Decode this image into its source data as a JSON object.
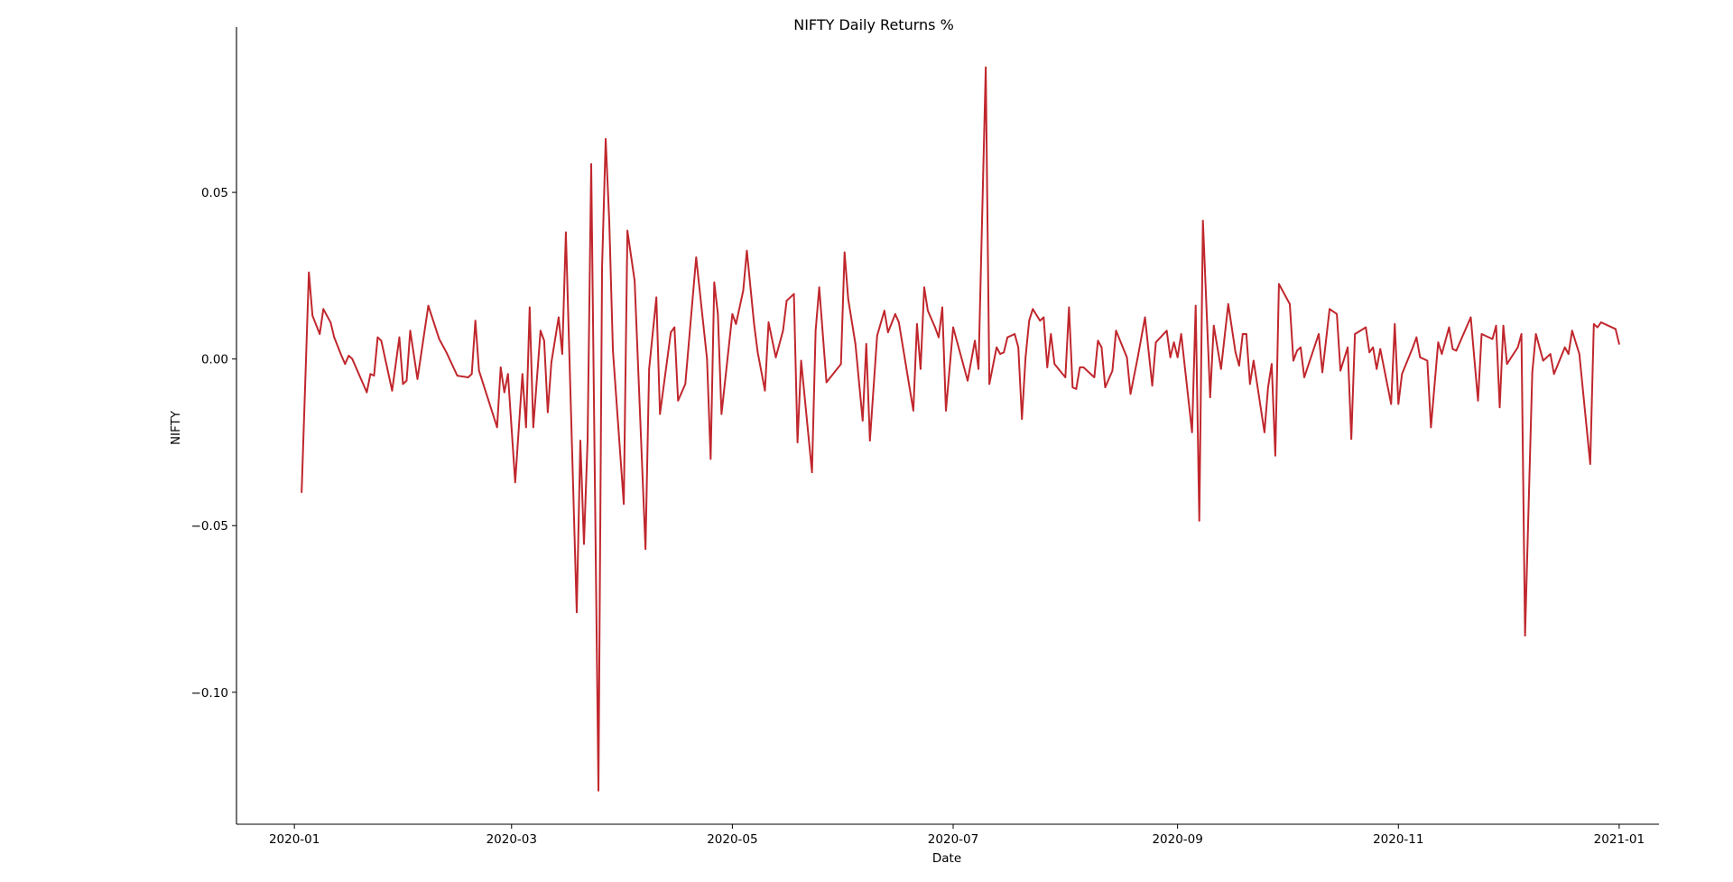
{
  "chart_data": {
    "type": "line",
    "title": "NIFTY Daily Returns %",
    "xlabel": "Date",
    "ylabel": "NIFTY",
    "grid": false,
    "legend": "none",
    "xlim": [
      "2019-12-16",
      "2021-01-12"
    ],
    "ylim": [
      -0.1396,
      0.0996
    ],
    "x_ticks": [
      "2020-01-01",
      "2020-03-01",
      "2020-05-01",
      "2020-07-01",
      "2020-09-01",
      "2020-11-01",
      "2021-01-01"
    ],
    "x_tick_labels": [
      "2020-01",
      "2020-03",
      "2020-05",
      "2020-07",
      "2020-09",
      "2020-11",
      "2021-01"
    ],
    "y_ticks": [
      -0.1,
      -0.05,
      0.0,
      0.05
    ],
    "y_tick_labels": [
      "−0.10",
      "−0.05",
      "0.00",
      "0.05"
    ],
    "series": [
      {
        "color": "#c0272d",
        "points": [
          [
            "2020-01-03",
            -0.04
          ],
          [
            "2020-01-05",
            0.026
          ],
          [
            "2020-01-06",
            0.013
          ],
          [
            "2020-01-08",
            0.0075
          ],
          [
            "2020-01-09",
            0.015
          ],
          [
            "2020-01-11",
            0.011
          ],
          [
            "2020-01-12",
            0.0065
          ],
          [
            "2020-01-14",
            0.001
          ],
          [
            "2020-01-15",
            -0.0015
          ],
          [
            "2020-01-16",
            0.001
          ],
          [
            "2020-01-17",
            0.0
          ],
          [
            "2020-01-21",
            -0.01
          ],
          [
            "2020-01-22",
            -0.0045
          ],
          [
            "2020-01-23",
            -0.005
          ],
          [
            "2020-01-24",
            0.0065
          ],
          [
            "2020-01-25",
            0.0055
          ],
          [
            "2020-01-28",
            -0.0095
          ],
          [
            "2020-01-30",
            0.0065
          ],
          [
            "2020-01-31",
            -0.0075
          ],
          [
            "2020-02-01",
            -0.0065
          ],
          [
            "2020-02-02",
            0.0085
          ],
          [
            "2020-02-04",
            -0.006
          ],
          [
            "2020-02-07",
            0.016
          ],
          [
            "2020-02-10",
            0.006
          ],
          [
            "2020-02-12",
            0.002
          ],
          [
            "2020-02-15",
            -0.005
          ],
          [
            "2020-02-18",
            -0.0055
          ],
          [
            "2020-02-19",
            -0.0045
          ],
          [
            "2020-02-20",
            0.0115
          ],
          [
            "2020-02-21",
            -0.0035
          ],
          [
            "2020-02-26",
            -0.0205
          ],
          [
            "2020-02-27",
            -0.0025
          ],
          [
            "2020-02-28",
            -0.01
          ],
          [
            "2020-02-29",
            -0.0045
          ],
          [
            "2020-03-02",
            -0.037
          ],
          [
            "2020-03-04",
            -0.0045
          ],
          [
            "2020-03-05",
            -0.0205
          ],
          [
            "2020-03-06",
            0.0155
          ],
          [
            "2020-03-07",
            -0.0205
          ],
          [
            "2020-03-09",
            0.0085
          ],
          [
            "2020-03-10",
            0.0055
          ],
          [
            "2020-03-11",
            -0.016
          ],
          [
            "2020-03-12",
            -0.001
          ],
          [
            "2020-03-14",
            0.0125
          ],
          [
            "2020-03-15",
            0.0015
          ],
          [
            "2020-03-16",
            0.038
          ],
          [
            "2020-03-19",
            -0.076
          ],
          [
            "2020-03-20",
            -0.0245
          ],
          [
            "2020-03-21",
            -0.0555
          ],
          [
            "2020-03-22",
            -0.0245
          ],
          [
            "2020-03-23",
            0.0585
          ],
          [
            "2020-03-25",
            -0.1295
          ],
          [
            "2020-03-26",
            0.0275
          ],
          [
            "2020-03-27",
            0.066
          ],
          [
            "2020-03-28",
            0.041
          ],
          [
            "2020-03-29",
            0.0025
          ],
          [
            "2020-04-01",
            -0.0435
          ],
          [
            "2020-04-02",
            0.0385
          ],
          [
            "2020-04-04",
            0.0235
          ],
          [
            "2020-04-07",
            -0.057
          ],
          [
            "2020-04-08",
            -0.003
          ],
          [
            "2020-04-10",
            0.0185
          ],
          [
            "2020-04-11",
            -0.0165
          ],
          [
            "2020-04-14",
            0.008
          ],
          [
            "2020-04-15",
            0.0095
          ],
          [
            "2020-04-16",
            -0.0125
          ],
          [
            "2020-04-18",
            -0.0075
          ],
          [
            "2020-04-21",
            0.0305
          ],
          [
            "2020-04-24",
            0.0
          ],
          [
            "2020-04-25",
            -0.03
          ],
          [
            "2020-04-26",
            0.023
          ],
          [
            "2020-04-27",
            0.0135
          ],
          [
            "2020-04-28",
            -0.0165
          ],
          [
            "2020-05-01",
            0.0135
          ],
          [
            "2020-05-02",
            0.0105
          ],
          [
            "2020-05-04",
            0.0205
          ],
          [
            "2020-05-05",
            0.0325
          ],
          [
            "2020-05-07",
            0.0105
          ],
          [
            "2020-05-08",
            0.002
          ],
          [
            "2020-05-10",
            -0.0095
          ],
          [
            "2020-05-11",
            0.011
          ],
          [
            "2020-05-13",
            0.0005
          ],
          [
            "2020-05-15",
            0.0085
          ],
          [
            "2020-05-16",
            0.0175
          ],
          [
            "2020-05-18",
            0.0195
          ],
          [
            "2020-05-19",
            -0.025
          ],
          [
            "2020-05-20",
            -0.0005
          ],
          [
            "2020-05-23",
            -0.034
          ],
          [
            "2020-05-24",
            0.0085
          ],
          [
            "2020-05-25",
            0.0215
          ],
          [
            "2020-05-27",
            -0.007
          ],
          [
            "2020-05-31",
            -0.0015
          ],
          [
            "2020-06-01",
            0.032
          ],
          [
            "2020-06-02",
            0.018
          ],
          [
            "2020-06-04",
            0.0045
          ],
          [
            "2020-06-06",
            -0.0185
          ],
          [
            "2020-06-07",
            0.0045
          ],
          [
            "2020-06-08",
            -0.0245
          ],
          [
            "2020-06-10",
            0.007
          ],
          [
            "2020-06-12",
            0.0145
          ],
          [
            "2020-06-13",
            0.008
          ],
          [
            "2020-06-15",
            0.0135
          ],
          [
            "2020-06-16",
            0.011
          ],
          [
            "2020-06-20",
            -0.0155
          ],
          [
            "2020-06-21",
            0.0105
          ],
          [
            "2020-06-22",
            -0.003
          ],
          [
            "2020-06-23",
            0.0215
          ],
          [
            "2020-06-24",
            0.0145
          ],
          [
            "2020-06-26",
            0.0095
          ],
          [
            "2020-06-27",
            0.0065
          ],
          [
            "2020-06-28",
            0.0155
          ],
          [
            "2020-06-29",
            -0.0155
          ],
          [
            "2020-07-01",
            0.0095
          ],
          [
            "2020-07-05",
            -0.0065
          ],
          [
            "2020-07-07",
            0.0055
          ],
          [
            "2020-07-08",
            -0.003
          ],
          [
            "2020-07-10",
            0.0875
          ],
          [
            "2020-07-11",
            -0.0075
          ],
          [
            "2020-07-13",
            0.0035
          ],
          [
            "2020-07-14",
            0.0015
          ],
          [
            "2020-07-15",
            0.002
          ],
          [
            "2020-07-16",
            0.0065
          ],
          [
            "2020-07-18",
            0.0075
          ],
          [
            "2020-07-19",
            0.0035
          ],
          [
            "2020-07-20",
            -0.018
          ],
          [
            "2020-07-21",
            0.0005
          ],
          [
            "2020-07-22",
            0.0115
          ],
          [
            "2020-07-23",
            0.015
          ],
          [
            "2020-07-25",
            0.0115
          ],
          [
            "2020-07-26",
            0.0125
          ],
          [
            "2020-07-27",
            -0.0025
          ],
          [
            "2020-07-28",
            0.0075
          ],
          [
            "2020-07-29",
            -0.0015
          ],
          [
            "2020-08-01",
            -0.0055
          ],
          [
            "2020-08-02",
            0.0155
          ],
          [
            "2020-08-03",
            -0.0085
          ],
          [
            "2020-08-04",
            -0.009
          ],
          [
            "2020-08-05",
            -0.0025
          ],
          [
            "2020-08-06",
            -0.0025
          ],
          [
            "2020-08-09",
            -0.0055
          ],
          [
            "2020-08-10",
            0.0055
          ],
          [
            "2020-08-11",
            0.0035
          ],
          [
            "2020-08-12",
            -0.0085
          ],
          [
            "2020-08-14",
            -0.0035
          ],
          [
            "2020-08-15",
            0.0085
          ],
          [
            "2020-08-18",
            0.0005
          ],
          [
            "2020-08-19",
            -0.0105
          ],
          [
            "2020-08-21",
            0.0005
          ],
          [
            "2020-08-23",
            0.0125
          ],
          [
            "2020-08-25",
            -0.008
          ],
          [
            "2020-08-26",
            0.005
          ],
          [
            "2020-08-29",
            0.0085
          ],
          [
            "2020-08-30",
            0.0005
          ],
          [
            "2020-08-31",
            0.005
          ],
          [
            "2020-09-01",
            0.0005
          ],
          [
            "2020-09-02",
            0.0075
          ],
          [
            "2020-09-05",
            -0.022
          ],
          [
            "2020-09-06",
            0.016
          ],
          [
            "2020-09-07",
            -0.0485
          ],
          [
            "2020-09-08",
            0.0415
          ],
          [
            "2020-09-10",
            -0.0115
          ],
          [
            "2020-09-11",
            0.01
          ],
          [
            "2020-09-13",
            -0.003
          ],
          [
            "2020-09-15",
            0.0165
          ],
          [
            "2020-09-17",
            0.002
          ],
          [
            "2020-09-18",
            -0.002
          ],
          [
            "2020-09-19",
            0.0075
          ],
          [
            "2020-09-20",
            0.0075
          ],
          [
            "2020-09-21",
            -0.0075
          ],
          [
            "2020-09-22",
            -0.0005
          ],
          [
            "2020-09-25",
            -0.022
          ],
          [
            "2020-09-26",
            -0.0085
          ],
          [
            "2020-09-27",
            -0.0015
          ],
          [
            "2020-09-28",
            -0.029
          ],
          [
            "2020-09-29",
            0.0225
          ],
          [
            "2020-10-02",
            0.0165
          ],
          [
            "2020-10-03",
            -0.0005
          ],
          [
            "2020-10-04",
            0.0025
          ],
          [
            "2020-10-05",
            0.0035
          ],
          [
            "2020-10-06",
            -0.0055
          ],
          [
            "2020-10-10",
            0.0075
          ],
          [
            "2020-10-11",
            -0.004
          ],
          [
            "2020-10-13",
            0.015
          ],
          [
            "2020-10-15",
            0.0135
          ],
          [
            "2020-10-16",
            -0.0035
          ],
          [
            "2020-10-18",
            0.0035
          ],
          [
            "2020-10-19",
            -0.024
          ],
          [
            "2020-10-20",
            0.0075
          ],
          [
            "2020-10-23",
            0.0095
          ],
          [
            "2020-10-24",
            0.002
          ],
          [
            "2020-10-25",
            0.0035
          ],
          [
            "2020-10-26",
            -0.003
          ],
          [
            "2020-10-27",
            0.003
          ],
          [
            "2020-10-30",
            -0.0135
          ],
          [
            "2020-10-31",
            0.0105
          ],
          [
            "2020-11-01",
            -0.0135
          ],
          [
            "2020-11-02",
            -0.0045
          ],
          [
            "2020-11-05",
            0.0035
          ],
          [
            "2020-11-06",
            0.0065
          ],
          [
            "2020-11-07",
            0.0005
          ],
          [
            "2020-11-09",
            -0.0005
          ],
          [
            "2020-11-10",
            -0.0205
          ],
          [
            "2020-11-12",
            0.005
          ],
          [
            "2020-11-13",
            0.0015
          ],
          [
            "2020-11-15",
            0.0095
          ],
          [
            "2020-11-16",
            0.003
          ],
          [
            "2020-11-17",
            0.0025
          ],
          [
            "2020-11-21",
            0.0125
          ],
          [
            "2020-11-23",
            -0.0125
          ],
          [
            "2020-11-24",
            0.0075
          ],
          [
            "2020-11-27",
            0.006
          ],
          [
            "2020-11-28",
            0.01
          ],
          [
            "2020-11-29",
            -0.0145
          ],
          [
            "2020-11-30",
            0.01
          ],
          [
            "2020-12-01",
            -0.0015
          ],
          [
            "2020-12-04",
            0.0035
          ],
          [
            "2020-12-05",
            0.0075
          ],
          [
            "2020-12-06",
            -0.083
          ],
          [
            "2020-12-08",
            -0.004
          ],
          [
            "2020-12-09",
            0.0075
          ],
          [
            "2020-12-11",
            -0.0005
          ],
          [
            "2020-12-13",
            0.0015
          ],
          [
            "2020-12-14",
            -0.0045
          ],
          [
            "2020-12-17",
            0.0035
          ],
          [
            "2020-12-18",
            0.0015
          ],
          [
            "2020-12-19",
            0.0085
          ],
          [
            "2020-12-21",
            0.0015
          ],
          [
            "2020-12-24",
            -0.0315
          ],
          [
            "2020-12-25",
            0.0105
          ],
          [
            "2020-12-26",
            0.0095
          ],
          [
            "2020-12-27",
            0.011
          ],
          [
            "2020-12-31",
            0.009
          ],
          [
            "2021-01-01",
            0.0045
          ]
        ]
      }
    ]
  }
}
